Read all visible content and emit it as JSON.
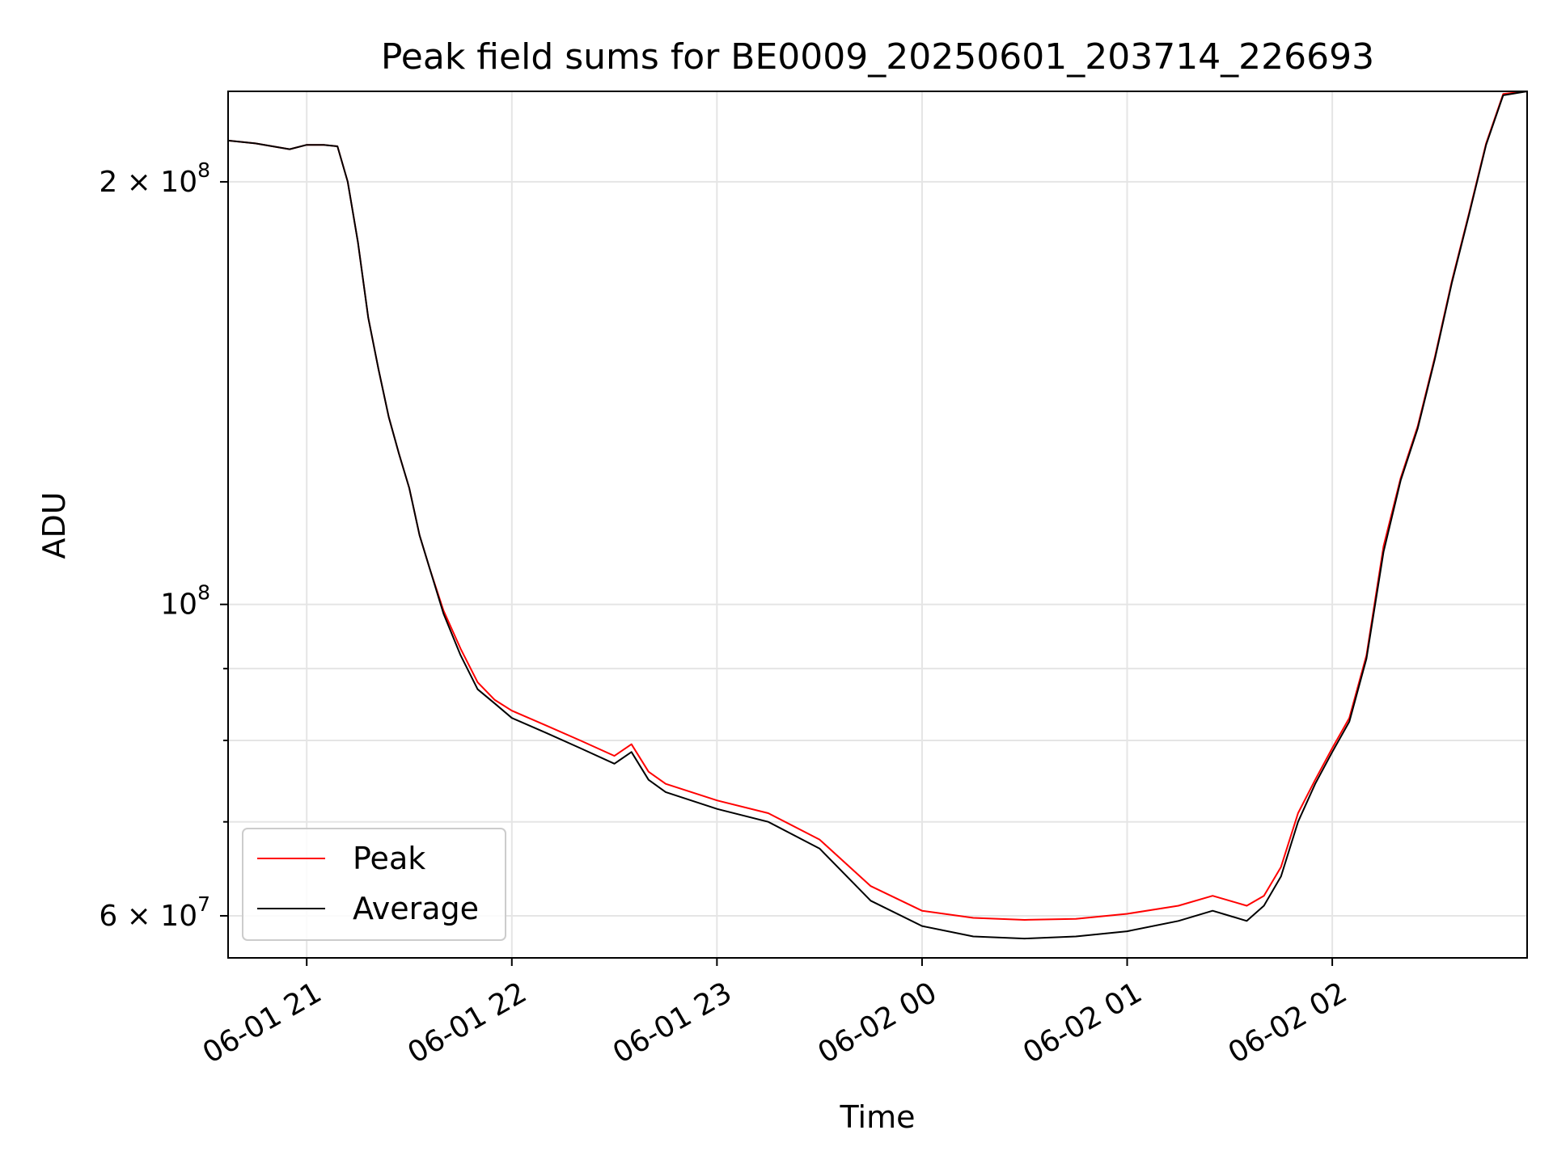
{
  "chart_data": {
    "type": "line",
    "title": "Peak field sums for BE0009_20250601_203714_226693",
    "xlabel": "Time",
    "ylabel": "ADU",
    "yscale": "log",
    "ylim": [
      56000000.0,
      232000000.0
    ],
    "xlim": [
      "2025-06-01 20:37",
      "2025-06-02 02:57"
    ],
    "grid": true,
    "legend_position": "lower-left",
    "x_ticks": [
      {
        "t": "2025-06-01 21:00",
        "label": "06-01 21"
      },
      {
        "t": "2025-06-01 22:00",
        "label": "06-01 22"
      },
      {
        "t": "2025-06-01 23:00",
        "label": "06-01 23"
      },
      {
        "t": "2025-06-02 00:00",
        "label": "06-02 00"
      },
      {
        "t": "2025-06-02 01:00",
        "label": "06-02 01"
      },
      {
        "t": "2025-06-02 02:00",
        "label": "06-02 02"
      }
    ],
    "y_ticks": [
      {
        "value": 200000000,
        "label_base": "2 × 10",
        "label_exp": "8"
      },
      {
        "value": 100000000,
        "label_base": "10",
        "label_exp": "8"
      },
      {
        "value": 60000000,
        "label_base": "6 × 10",
        "label_exp": "7"
      }
    ],
    "y_minor_ticks": [
      70000000,
      80000000,
      90000000
    ],
    "series": [
      {
        "name": "Peak",
        "color": "#ff0000",
        "x": [
          "2025-06-01 20:37",
          "2025-06-01 20:45",
          "2025-06-01 20:50",
          "2025-06-01 20:55",
          "2025-06-01 21:00",
          "2025-06-01 21:05",
          "2025-06-01 21:09",
          "2025-06-01 21:12",
          "2025-06-01 21:15",
          "2025-06-01 21:18",
          "2025-06-01 21:21",
          "2025-06-01 21:24",
          "2025-06-01 21:27",
          "2025-06-01 21:30",
          "2025-06-01 21:33",
          "2025-06-01 21:36",
          "2025-06-01 21:40",
          "2025-06-01 21:45",
          "2025-06-01 21:50",
          "2025-06-01 21:55",
          "2025-06-01 22:00",
          "2025-06-01 22:10",
          "2025-06-01 22:20",
          "2025-06-01 22:30",
          "2025-06-01 22:35",
          "2025-06-01 22:40",
          "2025-06-01 22:45",
          "2025-06-01 23:00",
          "2025-06-01 23:15",
          "2025-06-01 23:30",
          "2025-06-01 23:45",
          "2025-06-02 00:00",
          "2025-06-02 00:15",
          "2025-06-02 00:30",
          "2025-06-02 00:45",
          "2025-06-02 01:00",
          "2025-06-02 01:15",
          "2025-06-02 01:25",
          "2025-06-02 01:30",
          "2025-06-02 01:35",
          "2025-06-02 01:40",
          "2025-06-02 01:45",
          "2025-06-02 01:50",
          "2025-06-02 01:55",
          "2025-06-02 02:00",
          "2025-06-02 02:05",
          "2025-06-02 02:10",
          "2025-06-02 02:15",
          "2025-06-02 02:20",
          "2025-06-02 02:25",
          "2025-06-02 02:30",
          "2025-06-02 02:35",
          "2025-06-02 02:40",
          "2025-06-02 02:45",
          "2025-06-02 02:50",
          "2025-06-02 02:57"
        ],
        "values": [
          214000000,
          213000000,
          212000000,
          211000000,
          212500000,
          212500000,
          212000000,
          200000000,
          181000000,
          160000000,
          147000000,
          136000000,
          128000000,
          121000000,
          112000000,
          106000000,
          99000000,
          93000000,
          88000000,
          85500000,
          84000000,
          82000000,
          80000000,
          78000000,
          79500000,
          76000000,
          74500000,
          72500000,
          71000000,
          68000000,
          63000000,
          60500000,
          59800000,
          59600000,
          59700000,
          60200000,
          61000000,
          62000000,
          61500000,
          61000000,
          62000000,
          65000000,
          71000000,
          75000000,
          79000000,
          83000000,
          92000000,
          110000000,
          123000000,
          134000000,
          150000000,
          170000000,
          190000000,
          213000000,
          231000000,
          232000000
        ]
      },
      {
        "name": "Average",
        "color": "#000000",
        "x": [
          "2025-06-01 20:37",
          "2025-06-01 20:45",
          "2025-06-01 20:50",
          "2025-06-01 20:55",
          "2025-06-01 21:00",
          "2025-06-01 21:05",
          "2025-06-01 21:09",
          "2025-06-01 21:12",
          "2025-06-01 21:15",
          "2025-06-01 21:18",
          "2025-06-01 21:21",
          "2025-06-01 21:24",
          "2025-06-01 21:27",
          "2025-06-01 21:30",
          "2025-06-01 21:33",
          "2025-06-01 21:36",
          "2025-06-01 21:40",
          "2025-06-01 21:45",
          "2025-06-01 21:50",
          "2025-06-01 21:55",
          "2025-06-01 22:00",
          "2025-06-01 22:10",
          "2025-06-01 22:20",
          "2025-06-01 22:30",
          "2025-06-01 22:35",
          "2025-06-01 22:40",
          "2025-06-01 22:45",
          "2025-06-01 23:00",
          "2025-06-01 23:15",
          "2025-06-01 23:30",
          "2025-06-01 23:45",
          "2025-06-02 00:00",
          "2025-06-02 00:15",
          "2025-06-02 00:30",
          "2025-06-02 00:45",
          "2025-06-02 01:00",
          "2025-06-02 01:15",
          "2025-06-02 01:25",
          "2025-06-02 01:30",
          "2025-06-02 01:35",
          "2025-06-02 01:40",
          "2025-06-02 01:45",
          "2025-06-02 01:50",
          "2025-06-02 01:55",
          "2025-06-02 02:00",
          "2025-06-02 02:05",
          "2025-06-02 02:10",
          "2025-06-02 02:15",
          "2025-06-02 02:20",
          "2025-06-02 02:25",
          "2025-06-02 02:30",
          "2025-06-02 02:35",
          "2025-06-02 02:40",
          "2025-06-02 02:45",
          "2025-06-02 02:50",
          "2025-06-02 02:57"
        ],
        "values": [
          214000000,
          213000000,
          212000000,
          211000000,
          212500000,
          212500000,
          212000000,
          200000000,
          181000000,
          160000000,
          147000000,
          136000000,
          128000000,
          121000000,
          112000000,
          106000000,
          98500000,
          92000000,
          87000000,
          85000000,
          83000000,
          81000000,
          79000000,
          77000000,
          78500000,
          75000000,
          73500000,
          71500000,
          70000000,
          67000000,
          61500000,
          59000000,
          58000000,
          57800000,
          58000000,
          58500000,
          59500000,
          60500000,
          60000000,
          59500000,
          61000000,
          64000000,
          70000000,
          74500000,
          78500000,
          82500000,
          91500000,
          109000000,
          122500000,
          133500000,
          149500000,
          169500000,
          189500000,
          212500000,
          230500000,
          232000000
        ]
      }
    ]
  }
}
